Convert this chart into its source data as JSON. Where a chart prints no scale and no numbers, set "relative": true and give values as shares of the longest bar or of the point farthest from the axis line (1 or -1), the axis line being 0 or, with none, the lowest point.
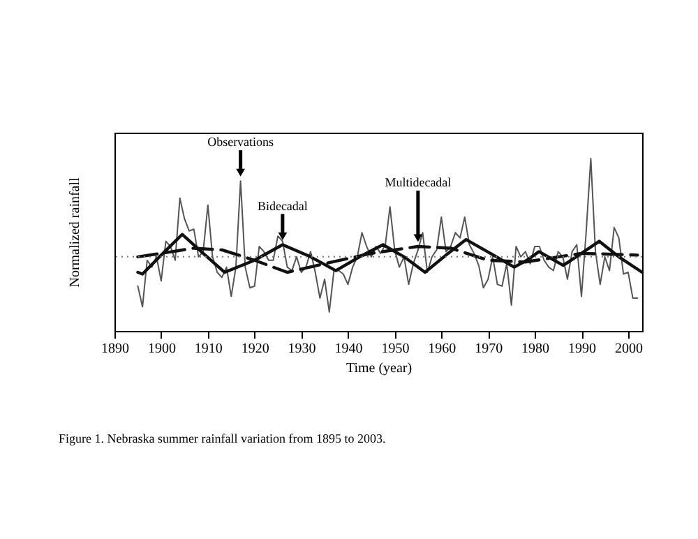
{
  "chart_data": {
    "type": "line",
    "relative": true,
    "xlabel": "Time (year)",
    "ylabel": "Normalized rainfall",
    "xlim": [
      1890,
      2003
    ],
    "xticks": [
      1890,
      1900,
      1910,
      1920,
      1930,
      1940,
      1950,
      1960,
      1970,
      1980,
      1990,
      2000
    ],
    "grid": false,
    "marker": "none",
    "series": [
      {
        "name": "Observations",
        "color": "#555555",
        "line_style": "solid",
        "x": [
          1895,
          1896,
          1897,
          1898,
          1899,
          1900,
          1901,
          1902,
          1903,
          1904,
          1905,
          1906,
          1907,
          1908,
          1909,
          1910,
          1911,
          1912,
          1913,
          1914,
          1915,
          1916,
          1917,
          1918,
          1919,
          1920,
          1921,
          1922,
          1923,
          1924,
          1925,
          1926,
          1927,
          1928,
          1929,
          1930,
          1931,
          1932,
          1933,
          1934,
          1935,
          1936,
          1937,
          1938,
          1939,
          1940,
          1941,
          1942,
          1943,
          1944,
          1945,
          1946,
          1947,
          1948,
          1949,
          1950,
          1951,
          1952,
          1953,
          1954,
          1955,
          1956,
          1957,
          1958,
          1959,
          1960,
          1961,
          1962,
          1963,
          1964,
          1965,
          1966,
          1967,
          1968,
          1969,
          1970,
          1971,
          1972,
          1973,
          1974,
          1975,
          1976,
          1977,
          1978,
          1979,
          1980,
          1981,
          1982,
          1983,
          1984,
          1985,
          1986,
          1987,
          1988,
          1989,
          1990,
          1991,
          1992,
          1993,
          1994,
          1995,
          1996,
          1997,
          1998,
          1999,
          2000,
          2001,
          2002
        ],
        "values": [
          0.26,
          0.14,
          0.41,
          0.37,
          0.43,
          0.29,
          0.52,
          0.49,
          0.41,
          0.77,
          0.65,
          0.58,
          0.59,
          0.43,
          0.46,
          0.73,
          0.43,
          0.34,
          0.31,
          0.37,
          0.2,
          0.37,
          0.87,
          0.37,
          0.25,
          0.26,
          0.49,
          0.46,
          0.41,
          0.41,
          0.55,
          0.52,
          0.37,
          0.35,
          0.43,
          0.34,
          0.37,
          0.46,
          0.34,
          0.19,
          0.3,
          0.11,
          0.35,
          0.35,
          0.33,
          0.27,
          0.37,
          0.43,
          0.57,
          0.49,
          0.43,
          0.49,
          0.45,
          0.5,
          0.72,
          0.47,
          0.37,
          0.43,
          0.27,
          0.39,
          0.47,
          0.57,
          0.34,
          0.43,
          0.47,
          0.66,
          0.46,
          0.49,
          0.57,
          0.54,
          0.66,
          0.5,
          0.45,
          0.38,
          0.25,
          0.3,
          0.43,
          0.27,
          0.26,
          0.39,
          0.15,
          0.49,
          0.43,
          0.46,
          0.39,
          0.49,
          0.49,
          0.41,
          0.37,
          0.35,
          0.46,
          0.43,
          0.3,
          0.46,
          0.5,
          0.2,
          0.57,
          1.0,
          0.46,
          0.27,
          0.43,
          0.35,
          0.6,
          0.54,
          0.33,
          0.34,
          0.19,
          0.19
        ]
      },
      {
        "name": "Bidecadal",
        "color": "#111111",
        "line_style": "solid",
        "x": [
          1895,
          1896,
          1900,
          1904.5,
          1909,
          1913.6,
          1920,
          1926,
          1932,
          1937.4,
          1942.5,
          1947.5,
          1952,
          1956.5,
          1961,
          1965.3,
          1970.5,
          1975.6,
          1978.3,
          1980.9,
          1983.5,
          1986.1,
          1990,
          1993.8,
          1998,
          2003
        ],
        "values": [
          0.34,
          0.33,
          0.44,
          0.56,
          0.45,
          0.34,
          0.41,
          0.5,
          0.43,
          0.35,
          0.43,
          0.5,
          0.43,
          0.34,
          0.44,
          0.53,
          0.45,
          0.37,
          0.41,
          0.46,
          0.42,
          0.38,
          0.45,
          0.52,
          0.43,
          0.34
        ]
      },
      {
        "name": "Multidecadal",
        "color": "#111111",
        "line_style": "dashed",
        "x": [
          1895,
          1900,
          1907,
          1913,
          1920,
          1927,
          1935,
          1945,
          1955,
          1962,
          1970,
          1978,
          1990,
          2002
        ],
        "values": [
          0.43,
          0.45,
          0.48,
          0.47,
          0.41,
          0.34,
          0.39,
          0.45,
          0.49,
          0.48,
          0.41,
          0.4,
          0.45,
          0.44
        ]
      }
    ],
    "ref_lines": [
      {
        "axis": "y",
        "value": 0.43,
        "color": "#777777",
        "line_style": "dotted"
      }
    ],
    "annotations": [
      "Figure 1.    Nebraska summer rainfall variation from 1895 to 2003."
    ]
  }
}
